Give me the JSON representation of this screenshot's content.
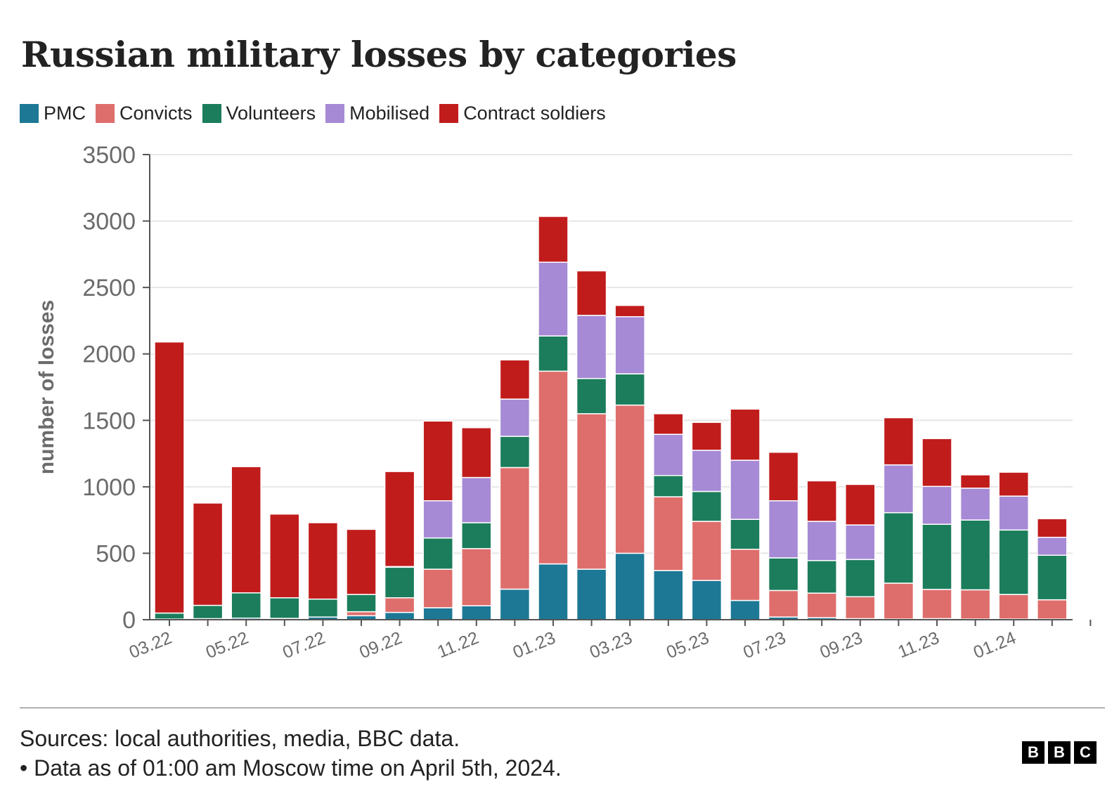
{
  "chart_data": {
    "type": "bar",
    "stacked": true,
    "title": "Russian military losses by categories",
    "ylabel": "number of losses",
    "xlabel": "",
    "ylim": [
      0,
      3500
    ],
    "yticks": [
      0,
      500,
      1000,
      1500,
      2000,
      2500,
      3000,
      3500
    ],
    "grid": true,
    "legend_position": "top-left",
    "categories": [
      "03.22",
      "04.22",
      "05.22",
      "06.22",
      "07.22",
      "08.22",
      "09.22",
      "10.22",
      "11.22",
      "12.22",
      "01.23",
      "02.23",
      "03.23",
      "04.23",
      "05.23",
      "06.23",
      "07.23",
      "08.23",
      "09.23",
      "10.23",
      "11.23",
      "12.23",
      "01.24",
      "02.24",
      "03.24"
    ],
    "tick_labels": [
      "03.22",
      "05.22",
      "07.22",
      "09.22",
      "11.22",
      "01.23",
      "03.23",
      "05.23",
      "07.23",
      "09.23",
      "11.23",
      "01.24"
    ],
    "series": [
      {
        "name": "PMC",
        "color": "#1d7896",
        "values": [
          5,
          8,
          12,
          10,
          20,
          30,
          55,
          90,
          105,
          230,
          420,
          380,
          500,
          370,
          295,
          145,
          20,
          15,
          8,
          5,
          8,
          5,
          5,
          5,
          5
        ]
      },
      {
        "name": "Convicts",
        "color": "#de6e6c",
        "values": [
          0,
          0,
          0,
          0,
          0,
          30,
          110,
          290,
          430,
          915,
          1450,
          1170,
          1115,
          555,
          445,
          385,
          200,
          185,
          165,
          270,
          220,
          220,
          185,
          145,
          0
        ]
      },
      {
        "name": "Volunteers",
        "color": "#1b7d5b",
        "values": [
          45,
          100,
          190,
          155,
          135,
          130,
          230,
          235,
          195,
          235,
          265,
          265,
          235,
          160,
          225,
          225,
          245,
          245,
          280,
          530,
          490,
          525,
          485,
          335,
          0
        ]
      },
      {
        "name": "Mobilised",
        "color": "#a68ad5",
        "values": [
          0,
          0,
          0,
          0,
          0,
          0,
          5,
          280,
          340,
          280,
          555,
          475,
          430,
          310,
          310,
          445,
          430,
          295,
          260,
          360,
          285,
          240,
          255,
          135,
          0
        ]
      },
      {
        "name": "Contract soldiers",
        "color": "#c11c1c",
        "values": [
          2040,
          770,
          950,
          630,
          575,
          490,
          715,
          600,
          375,
          295,
          345,
          335,
          85,
          155,
          210,
          385,
          365,
          305,
          305,
          355,
          360,
          100,
          180,
          140,
          0
        ]
      }
    ]
  },
  "footer": {
    "sources": "Sources: local authorities, media, BBC data.",
    "note": "• Data as of 01:00 am Moscow time on April 5th, 2024."
  },
  "logo": {
    "letters": [
      "B",
      "B",
      "C"
    ]
  }
}
